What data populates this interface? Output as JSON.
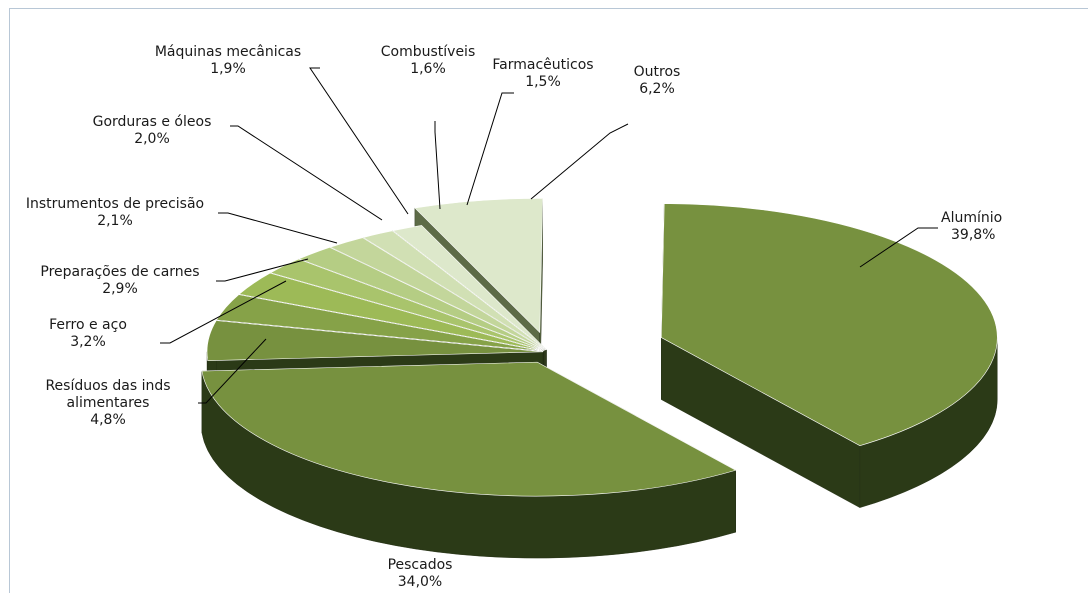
{
  "chart_data": {
    "type": "pie",
    "title": "",
    "legend": "none",
    "slices": [
      {
        "label": "Alumínio",
        "value": 39.8,
        "display": "39,8%"
      },
      {
        "label": "Pescados",
        "value": 34.0,
        "display": "34,0%"
      },
      {
        "label": "Resíduos das inds alimentares",
        "label_lines": [
          "Resíduos das inds",
          "alimentares"
        ],
        "value": 4.8,
        "display": "4,8%"
      },
      {
        "label": "Ferro e aço",
        "value": 3.2,
        "display": "3,2%"
      },
      {
        "label": "Preparações de carnes",
        "value": 2.9,
        "display": "2,9%"
      },
      {
        "label": "Instrumentos de precisão",
        "value": 2.1,
        "display": "2,1%"
      },
      {
        "label": "Gorduras e óleos",
        "value": 2.0,
        "display": "2,0%"
      },
      {
        "label": "Máquinas mecânicas",
        "value": 1.9,
        "display": "1,9%"
      },
      {
        "label": "Combustíveis",
        "value": 1.6,
        "display": "1,6%"
      },
      {
        "label": "Farmacêuticos",
        "value": 1.5,
        "display": "1,5%"
      },
      {
        "label": "Outros",
        "value": 6.2,
        "display": "6,2%"
      }
    ],
    "colors": {
      "top": "#77913f",
      "side": "#2b3a17",
      "light": [
        "#9dba57",
        "#a9c46c",
        "#b5cd84",
        "#c3d69b",
        "#d1e0b4",
        "#dde8cb"
      ]
    }
  }
}
